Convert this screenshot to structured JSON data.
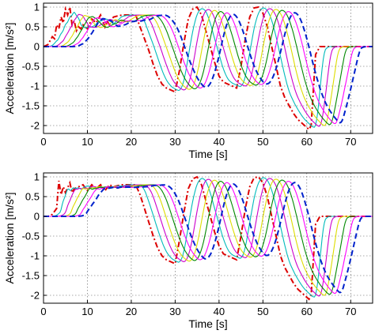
{
  "chart_data": [
    {
      "type": "line",
      "xlabel": "Time [s]",
      "ylabel": "Acceleration [m/s²]",
      "xlim": [
        0,
        75
      ],
      "ylim": [
        -2.2,
        1.1
      ],
      "xticks": [
        0,
        10,
        20,
        30,
        40,
        50,
        60,
        70
      ],
      "yticks": [
        -2,
        -1.5,
        -1,
        -0.5,
        0,
        0.5,
        1
      ],
      "xtick_labels": [
        "0",
        "10",
        "20",
        "30",
        "40",
        "50",
        "60",
        "70"
      ],
      "ytick_labels": [
        "-2",
        "-1.5",
        "-1",
        "-0.5",
        "0",
        "0.5",
        "1"
      ],
      "grid": true,
      "series": [
        {
          "color": "#dd0000",
          "style": "dashdot",
          "lag": 0,
          "x": [
            0,
            1,
            2,
            2.5,
            3,
            3.5,
            4,
            4.5,
            5,
            5.5,
            6,
            6.5,
            7,
            7.5,
            8,
            8.5,
            9,
            10,
            11,
            12,
            13,
            14,
            14.5,
            15,
            15.5,
            16,
            17,
            18,
            20,
            21,
            22,
            23,
            24,
            25,
            26,
            27,
            28,
            29,
            30,
            31,
            32,
            33,
            34,
            35,
            36,
            37,
            38,
            39,
            40,
            41,
            42,
            43,
            44,
            45,
            46,
            47,
            48,
            49,
            50,
            51,
            52,
            53,
            54,
            55,
            56,
            57,
            58,
            59,
            60,
            60.5,
            61,
            62,
            63,
            64,
            65,
            66,
            67,
            68,
            69,
            70,
            71,
            72,
            73,
            74,
            75
          ],
          "y": [
            0,
            0.05,
            0.25,
            0.2,
            0.55,
            0.45,
            0.75,
            0.6,
            0.95,
            0.8,
            1.0,
            0.55,
            0.65,
            0.4,
            0.5,
            0.45,
            0.55,
            0.45,
            0.7,
            0.6,
            0.8,
            0.5,
            0.65,
            0.55,
            0.7,
            0.75,
            0.78,
            0.8,
            0.8,
            0.8,
            0.5,
            0.2,
            -0.1,
            -0.45,
            -0.75,
            -0.95,
            -1.05,
            -1.1,
            -1.15,
            -0.6,
            0.1,
            0.7,
            0.95,
            1.0,
            0.8,
            0.4,
            0.0,
            -0.4,
            -0.75,
            -0.9,
            -0.95,
            -1.0,
            -1.05,
            -0.5,
            0.2,
            0.75,
            0.98,
            1.0,
            0.85,
            0.5,
            0.0,
            -0.5,
            -1.0,
            -1.3,
            -1.5,
            -1.7,
            -1.85,
            -1.95,
            -2.05,
            -2.1,
            -2.0,
            -0.2,
            0.0,
            0.0,
            0,
            0,
            0,
            0,
            0,
            0,
            0,
            0,
            0,
            0,
            0
          ]
        },
        {
          "color": "#00bbbb",
          "style": "solid",
          "lag": 1.4
        },
        {
          "color": "#cc00cc",
          "style": "solid",
          "lag": 2.8
        },
        {
          "color": "#dddd00",
          "style": "solid",
          "lag": 4.2
        },
        {
          "color": "#008800",
          "style": "solid",
          "lag": 5.6
        },
        {
          "color": "#ff00ff",
          "style": "solid",
          "lag": 7.0
        },
        {
          "color": "#0022cc",
          "style": "dashed",
          "lag": 8.4
        }
      ]
    },
    {
      "type": "line",
      "xlabel": "Time [s]",
      "ylabel": "Acceleration [m/s²]",
      "xlim": [
        0,
        75
      ],
      "ylim": [
        -2.2,
        1.1
      ],
      "xticks": [
        0,
        10,
        20,
        30,
        40,
        50,
        60,
        70
      ],
      "yticks": [
        -2,
        -1.5,
        -1,
        -0.5,
        0,
        0.5,
        1
      ],
      "xtick_labels": [
        "0",
        "10",
        "20",
        "30",
        "40",
        "50",
        "60",
        "70"
      ],
      "ytick_labels": [
        "-2",
        "-1.5",
        "-1",
        "-0.5",
        "0",
        "0.5",
        "1"
      ],
      "grid": true,
      "series": [
        {
          "color": "#dd0000",
          "style": "dashdot",
          "lag": 0,
          "x": [
            0,
            1,
            2,
            3,
            3.5,
            4,
            4.5,
            5,
            6,
            6.5,
            7,
            8,
            9,
            10,
            11,
            12,
            13,
            14,
            15,
            16,
            17,
            18,
            20,
            21,
            22,
            23,
            24,
            25,
            26,
            27,
            28,
            29,
            30,
            31,
            32,
            33,
            34,
            35,
            36,
            37,
            38,
            39,
            40,
            41,
            42,
            43,
            44,
            45,
            46,
            47,
            48,
            49,
            50,
            51,
            52,
            53,
            54,
            55,
            56,
            57,
            58,
            59,
            60,
            60.5,
            61,
            62,
            63,
            64,
            65,
            66,
            67,
            68,
            69,
            70,
            71,
            72,
            73,
            74,
            75
          ],
          "y": [
            0,
            0,
            0.05,
            0.2,
            0.9,
            0.55,
            0.75,
            0.6,
            0.85,
            0.6,
            0.7,
            0.75,
            0.8,
            0.65,
            0.8,
            0.7,
            0.8,
            0.65,
            0.8,
            0.75,
            0.78,
            0.8,
            0.8,
            0.8,
            0.55,
            0.2,
            -0.15,
            -0.5,
            -0.8,
            -1.0,
            -1.1,
            -1.15,
            -1.2,
            -0.6,
            0.1,
            0.7,
            0.95,
            1.0,
            0.8,
            0.4,
            0.0,
            -0.4,
            -0.75,
            -0.95,
            -1.0,
            -1.05,
            -1.1,
            -0.5,
            0.2,
            0.75,
            0.98,
            1.0,
            0.85,
            0.5,
            0.0,
            -0.5,
            -1.0,
            -1.3,
            -1.5,
            -1.7,
            -1.85,
            -1.95,
            -2.05,
            -2.1,
            -2.0,
            -0.2,
            0.0,
            0.0,
            0,
            0,
            0,
            0,
            0,
            0,
            0,
            0,
            0,
            0,
            0
          ]
        },
        {
          "color": "#00bbbb",
          "style": "solid",
          "lag": 1.4
        },
        {
          "color": "#cc00cc",
          "style": "solid",
          "lag": 2.8
        },
        {
          "color": "#dddd00",
          "style": "solid",
          "lag": 4.2
        },
        {
          "color": "#008800",
          "style": "solid",
          "lag": 5.6
        },
        {
          "color": "#ff00ff",
          "style": "solid",
          "lag": 7.0
        },
        {
          "color": "#0022cc",
          "style": "dashed",
          "lag": 8.4
        }
      ]
    }
  ]
}
